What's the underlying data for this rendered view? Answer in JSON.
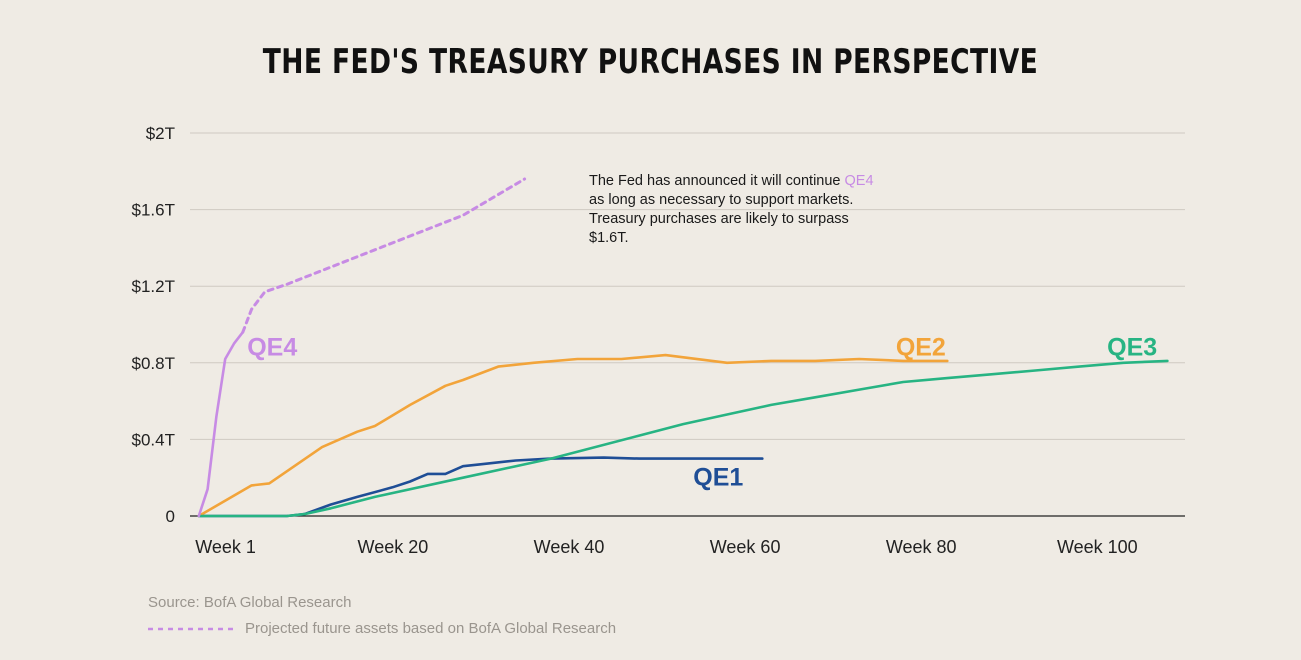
{
  "title": "THE FED'S TREASURY PURCHASES IN PERSPECTIVE",
  "annotation": {
    "before": "The Fed has announced it will continue ",
    "highlight": "QE4",
    "after": " as long as necessary to support markets. Treasury purchases are likely to surpass $1.6T."
  },
  "source": "Source: BofA Global Research",
  "legend": {
    "projected_label": "Projected future assets based on BofA Global Research"
  },
  "colors": {
    "qe1": "#1f4e96",
    "qe2": "#f2a43a",
    "qe3": "#27b483",
    "qe4": "#c78be4",
    "grid": "#cfcac2",
    "axis": "#222222"
  },
  "chart_data": {
    "type": "line",
    "title": "THE FED'S TREASURY PURCHASES IN PERSPECTIVE",
    "xlabel": "",
    "ylabel": "",
    "xlim": [
      -1,
      112
    ],
    "ylim": [
      0,
      2
    ],
    "grid": true,
    "y_ticks": [
      {
        "value": 0,
        "label": "0"
      },
      {
        "value": 0.4,
        "label": "$0.4T"
      },
      {
        "value": 0.8,
        "label": "$0.8T"
      },
      {
        "value": 1.2,
        "label": "$1.2T"
      },
      {
        "value": 1.6,
        "label": "$1.6T"
      },
      {
        "value": 2.0,
        "label": "$2T"
      }
    ],
    "x_ticks": [
      {
        "value": 1,
        "label": "Week 1"
      },
      {
        "value": 20,
        "label": "Week 20"
      },
      {
        "value": 40,
        "label": "Week 40"
      },
      {
        "value": 60,
        "label": "Week 60"
      },
      {
        "value": 80,
        "label": "Week 80"
      },
      {
        "value": 100,
        "label": "Week 100"
      }
    ],
    "series": [
      {
        "name": "QE1",
        "key": "qe1",
        "style": "solid",
        "label_at": [
          59,
          0.2
        ],
        "x": [
          0,
          5,
          10,
          12,
          15,
          18,
          22,
          24,
          26,
          28,
          30,
          32,
          36,
          40,
          46,
          50,
          55,
          60,
          64
        ],
        "y": [
          0,
          0,
          0,
          0.01,
          0.06,
          0.1,
          0.15,
          0.18,
          0.22,
          0.22,
          0.26,
          0.27,
          0.29,
          0.3,
          0.305,
          0.3,
          0.3,
          0.3,
          0.3
        ]
      },
      {
        "name": "QE2",
        "key": "qe2",
        "style": "solid",
        "label_at": [
          82,
          0.88
        ],
        "x": [
          0,
          6,
          8,
          14,
          18,
          20,
          24,
          28,
          30,
          34,
          38,
          43,
          48,
          53,
          60,
          65,
          70,
          75,
          80,
          85
        ],
        "y": [
          0,
          0.16,
          0.17,
          0.36,
          0.44,
          0.47,
          0.58,
          0.68,
          0.71,
          0.78,
          0.8,
          0.82,
          0.82,
          0.84,
          0.8,
          0.81,
          0.81,
          0.82,
          0.81,
          0.81
        ]
      },
      {
        "name": "QE3",
        "key": "qe3",
        "style": "solid",
        "label_at": [
          106,
          0.88
        ],
        "x": [
          0,
          5,
          10,
          12,
          15,
          20,
          30,
          40,
          50,
          55,
          60,
          65,
          70,
          75,
          80,
          85,
          90,
          95,
          100,
          105,
          110
        ],
        "y": [
          0,
          0,
          0,
          0.01,
          0.04,
          0.1,
          0.2,
          0.3,
          0.42,
          0.48,
          0.53,
          0.58,
          0.62,
          0.66,
          0.7,
          0.72,
          0.74,
          0.76,
          0.78,
          0.8,
          0.81
        ]
      },
      {
        "name": "QE4",
        "key": "qe4",
        "style": "solid",
        "label_at": [
          5.5,
          0.88
        ],
        "x": [
          0,
          1,
          2,
          3,
          4,
          5
        ],
        "y": [
          0,
          0.14,
          0.52,
          0.82,
          0.9,
          0.96
        ]
      },
      {
        "name": "",
        "key": "qe4",
        "style": "dashed",
        "x": [
          5,
          6,
          7.5,
          10,
          20,
          30,
          37
        ],
        "y": [
          0.96,
          1.08,
          1.17,
          1.21,
          1.39,
          1.57,
          1.76
        ]
      }
    ]
  }
}
